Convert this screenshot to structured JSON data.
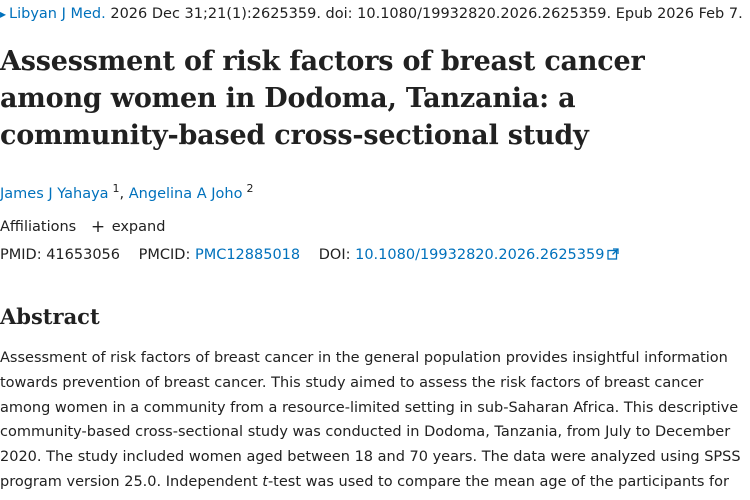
{
  "citation": {
    "journal": "Libyan J Med.",
    "details": "2026 Dec 31;21(1):2625359. doi: 10.1080/19932820.2026.2625359. Epub 2026 Feb 7."
  },
  "title": "Assessment of risk factors of breast cancer among women in Dodoma, Tanzania: a community-based cross-sectional study",
  "authors": [
    {
      "name": "James J Yahaya",
      "affiliation": "1"
    },
    {
      "name": "Angelina A Joho",
      "affiliation": "2"
    }
  ],
  "affiliations": {
    "label": "Affiliations",
    "toggle_symbol": "+",
    "toggle_label": "expand"
  },
  "identifiers": {
    "pmid_label": "PMID:",
    "pmid": "41653056",
    "pmcid_label": "PMCID:",
    "pmcid": "PMC12885018",
    "doi_label": "DOI:",
    "doi": "10.1080/19932820.2026.2625359"
  },
  "abstract": {
    "heading": "Abstract",
    "text_part1": "Assessment of risk factors of breast cancer in the general population provides insightful information towards prevention of breast cancer. This study aimed to assess the risk factors of breast cancer among women in a community from a resource-limited setting in sub-Saharan Africa. This descriptive community-based cross-sectional study was conducted in Dodoma, Tanzania, from July to December 2020. The study included women aged between 18 and 70 years. The data were analyzed using SPSS program version 25.0. Independent ",
    "text_italic": "t",
    "text_part2": "-test was used to compare the mean age of the participants for"
  },
  "colors": {
    "link": "#0071bc",
    "text": "#212121",
    "background": "#ffffff"
  },
  "icons": {
    "citation_arrow": "chevron-right-icon",
    "doi_external": "external-link-icon"
  }
}
